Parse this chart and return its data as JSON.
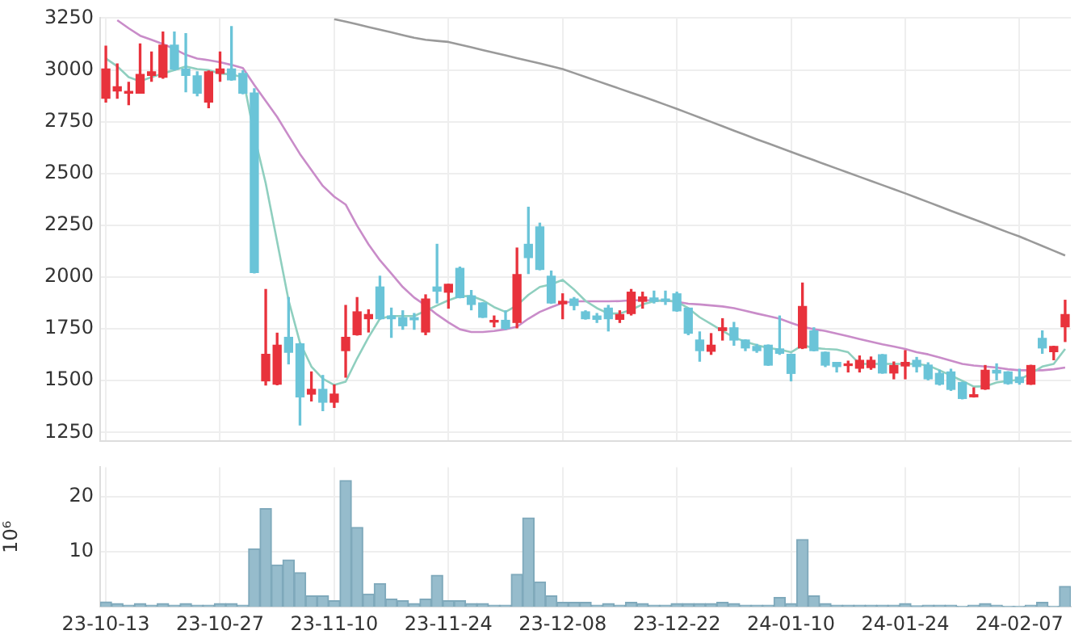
{
  "chart_data": [
    {
      "type": "candlestick",
      "tick_labels": "y",
      "grid": true,
      "ylim": [
        1210,
        3250
      ],
      "yticks": [
        1250,
        1500,
        1750,
        2000,
        2250,
        2500,
        2750,
        3000,
        3250
      ],
      "categories": [
        null,
        null,
        null,
        null,
        null,
        null,
        null,
        null,
        null,
        null,
        null,
        null,
        null,
        null,
        null,
        null,
        null,
        null,
        null,
        null,
        null,
        null,
        null,
        null,
        null,
        null,
        null,
        null,
        null,
        null,
        null,
        null,
        null,
        null,
        null,
        null,
        null,
        null,
        null,
        null,
        null,
        null,
        null,
        null,
        null,
        null,
        null,
        null,
        null,
        null,
        null,
        null,
        null,
        null,
        null,
        null,
        null,
        null,
        null,
        null,
        null,
        null,
        null,
        null,
        null,
        null,
        null,
        null,
        null,
        null,
        null,
        null,
        null,
        null,
        null,
        null,
        null,
        null,
        null,
        null,
        null,
        null,
        null,
        null,
        null
      ],
      "ohlc": [
        [
          2863,
          3114,
          2845,
          3004
        ],
        [
          2898,
          3029,
          2863,
          2919
        ],
        [
          2888,
          2940,
          2832,
          2896
        ],
        [
          2888,
          3125,
          2888,
          2978
        ],
        [
          2973,
          3086,
          2945,
          2991
        ],
        [
          2965,
          3183,
          2960,
          3119
        ],
        [
          3119,
          3183,
          3000,
          3004
        ],
        [
          3004,
          3175,
          2894,
          2973
        ],
        [
          2971,
          2991,
          2875,
          2888
        ],
        [
          2845,
          2995,
          2817,
          2991
        ],
        [
          2983,
          3086,
          2945,
          3004
        ],
        [
          3004,
          3209,
          2950,
          2952
        ],
        [
          2983,
          2996,
          2885,
          2888
        ],
        [
          2888,
          2909,
          2020,
          2022
        ],
        [
          1499,
          1940,
          1479,
          1627
        ],
        [
          1483,
          1729,
          1480,
          1671
        ],
        [
          1709,
          1901,
          1581,
          1637
        ],
        [
          1678,
          1680,
          1286,
          1422
        ],
        [
          1435,
          1542,
          1402,
          1458
        ],
        [
          1458,
          1525,
          1355,
          1396
        ],
        [
          1396,
          1479,
          1371,
          1435
        ],
        [
          1645,
          1863,
          1517,
          1709
        ],
        [
          1722,
          1901,
          1720,
          1832
        ],
        [
          1799,
          1842,
          1735,
          1819
        ],
        [
          1952,
          2004,
          1797,
          1799
        ],
        [
          1812,
          1850,
          1709,
          1799
        ],
        [
          1804,
          1837,
          1748,
          1765
        ],
        [
          1804,
          1824,
          1748,
          1794
        ],
        [
          1735,
          1914,
          1722,
          1894
        ],
        [
          1952,
          2158,
          1875,
          1932
        ],
        [
          1927,
          1965,
          1850,
          1965
        ],
        [
          2042,
          2048,
          1900,
          1901
        ],
        [
          1909,
          1935,
          1842,
          1868
        ],
        [
          1875,
          1876,
          1805,
          1806
        ],
        [
          1783,
          1812,
          1760,
          1789
        ],
        [
          1791,
          1837,
          1748,
          1752
        ],
        [
          1781,
          2140,
          1755,
          2012
        ],
        [
          2158,
          2337,
          2017,
          2094
        ],
        [
          2242,
          2260,
          2035,
          2037
        ],
        [
          2004,
          2029,
          1873,
          1875
        ],
        [
          1871,
          1919,
          1799,
          1883
        ],
        [
          1894,
          1901,
          1842,
          1863
        ],
        [
          1832,
          1837,
          1797,
          1799
        ],
        [
          1812,
          1824,
          1781,
          1796
        ],
        [
          1850,
          1863,
          1740,
          1799
        ],
        [
          1796,
          1837,
          1781,
          1819
        ],
        [
          1824,
          1940,
          1817,
          1927
        ],
        [
          1883,
          1927,
          1850,
          1904
        ],
        [
          1899,
          1932,
          1875,
          1883
        ],
        [
          1894,
          1932,
          1868,
          1883
        ],
        [
          1919,
          1927,
          1835,
          1837
        ],
        [
          1850,
          1850,
          1722,
          1729
        ],
        [
          1696,
          1735,
          1594,
          1645
        ],
        [
          1642,
          1727,
          1627,
          1671
        ],
        [
          1742,
          1799,
          1696,
          1755
        ],
        [
          1755,
          1781,
          1671,
          1696
        ],
        [
          1696,
          1697,
          1645,
          1658
        ],
        [
          1665,
          1675,
          1637,
          1645
        ],
        [
          1671,
          1672,
          1574,
          1575
        ],
        [
          1653,
          1812,
          1627,
          1632
        ],
        [
          1627,
          1628,
          1499,
          1535
        ],
        [
          1658,
          1971,
          1655,
          1858
        ],
        [
          1740,
          1755,
          1644,
          1645
        ],
        [
          1637,
          1638,
          1568,
          1575
        ],
        [
          1588,
          1588,
          1542,
          1568
        ],
        [
          1573,
          1594,
          1542,
          1578
        ],
        [
          1560,
          1619,
          1542,
          1598
        ],
        [
          1563,
          1614,
          1555,
          1598
        ],
        [
          1625,
          1626,
          1536,
          1537
        ],
        [
          1537,
          1590,
          1509,
          1573
        ],
        [
          1571,
          1645,
          1509,
          1588
        ],
        [
          1598,
          1612,
          1542,
          1568
        ],
        [
          1575,
          1586,
          1504,
          1509
        ],
        [
          1535,
          1550,
          1479,
          1483
        ],
        [
          1542,
          1555,
          1453,
          1458
        ],
        [
          1491,
          1492,
          1412,
          1414
        ],
        [
          1422,
          1465,
          1421,
          1432
        ],
        [
          1460,
          1573,
          1458,
          1550
        ],
        [
          1550,
          1581,
          1504,
          1537
        ],
        [
          1542,
          1543,
          1483,
          1486
        ],
        [
          1517,
          1555,
          1483,
          1491
        ],
        [
          1483,
          1574,
          1482,
          1573
        ],
        [
          1704,
          1740,
          1632,
          1658
        ],
        [
          1640,
          1666,
          1601,
          1665
        ],
        [
          1760,
          1888,
          1689,
          1819
        ]
      ],
      "colors": [
        "#e8323c",
        "#e8323c",
        "#e8323c",
        "#e8323c",
        "#e8323c",
        "#e8323c",
        "#6ac4d8",
        "#6ac4d8",
        "#6ac4d8",
        "#e8323c",
        "#e8323c",
        "#6ac4d8",
        "#6ac4d8",
        "#6ac4d8",
        "#e8323c",
        "#e8323c",
        "#6ac4d8",
        "#6ac4d8",
        "#e8323c",
        "#6ac4d8",
        "#e8323c",
        "#e8323c",
        "#e8323c",
        "#e8323c",
        "#6ac4d8",
        "#6ac4d8",
        "#6ac4d8",
        "#6ac4d8",
        "#e8323c",
        "#6ac4d8",
        "#e8323c",
        "#6ac4d8",
        "#6ac4d8",
        "#6ac4d8",
        "#e8323c",
        "#6ac4d8",
        "#e8323c",
        "#6ac4d8",
        "#6ac4d8",
        "#6ac4d8",
        "#e8323c",
        "#6ac4d8",
        "#6ac4d8",
        "#6ac4d8",
        "#6ac4d8",
        "#e8323c",
        "#e8323c",
        "#e8323c",
        "#6ac4d8",
        "#6ac4d8",
        "#6ac4d8",
        "#6ac4d8",
        "#6ac4d8",
        "#e8323c",
        "#e8323c",
        "#6ac4d8",
        "#6ac4d8",
        "#6ac4d8",
        "#6ac4d8",
        "#6ac4d8",
        "#6ac4d8",
        "#e8323c",
        "#6ac4d8",
        "#6ac4d8",
        "#6ac4d8",
        "#e8323c",
        "#e8323c",
        "#e8323c",
        "#6ac4d8",
        "#e8323c",
        "#e8323c",
        "#6ac4d8",
        "#6ac4d8",
        "#6ac4d8",
        "#6ac4d8",
        "#6ac4d8",
        "#e8323c",
        "#e8323c",
        "#6ac4d8",
        "#6ac4d8",
        "#6ac4d8",
        "#e8323c",
        "#6ac4d8",
        "#e8323c",
        "#e8323c"
      ],
      "series": [
        {
          "type": "line",
          "color": "#8fcfbf",
          "values": [
            3055,
            3017,
            2965,
            2945,
            2965,
            2983,
            2999,
            3017,
            3004,
            2999,
            2983,
            2978,
            2965,
            2683,
            2452,
            2171,
            1888,
            1683,
            1568,
            1509,
            1479,
            1495,
            1607,
            1709,
            1799,
            1812,
            1812,
            1812,
            1837,
            1863,
            1888,
            1907,
            1909,
            1888,
            1855,
            1832,
            1863,
            1914,
            1952,
            1965,
            1986,
            1940,
            1885,
            1850,
            1824,
            1824,
            1842,
            1868,
            1883,
            1888,
            1881,
            1850,
            1806,
            1773,
            1740,
            1709,
            1688,
            1671,
            1658,
            1650,
            1637,
            1671,
            1658,
            1653,
            1650,
            1637,
            1581,
            1581,
            1581,
            1581,
            1581,
            1581,
            1573,
            1550,
            1525,
            1499,
            1471,
            1473,
            1491,
            1499,
            1504,
            1535,
            1568,
            1581,
            1653
          ]
        },
        {
          "type": "line",
          "color": "#c98cc9",
          "values": [
            null,
            3240,
            3201,
            3165,
            3145,
            3125,
            3101,
            3073,
            3055,
            3047,
            3037,
            3024,
            3009,
            2927,
            2850,
            2773,
            2683,
            2594,
            2517,
            2440,
            2388,
            2350,
            2248,
            2158,
            2081,
            2017,
            1952,
            1901,
            1863,
            1819,
            1781,
            1748,
            1735,
            1735,
            1740,
            1748,
            1760,
            1799,
            1832,
            1855,
            1875,
            1883,
            1883,
            1883,
            1883,
            1884,
            1888,
            1888,
            1888,
            1886,
            1881,
            1871,
            1868,
            1863,
            1858,
            1850,
            1837,
            1824,
            1812,
            1799,
            1779,
            1760,
            1748,
            1740,
            1727,
            1714,
            1701,
            1688,
            1675,
            1665,
            1653,
            1637,
            1627,
            1612,
            1596,
            1581,
            1573,
            1568,
            1563,
            1555,
            1550,
            1550,
            1550,
            1555,
            1563
          ]
        },
        {
          "type": "line",
          "color": "#9a9a9a",
          "values": [
            null,
            null,
            null,
            null,
            null,
            null,
            null,
            null,
            null,
            null,
            null,
            null,
            null,
            null,
            null,
            null,
            null,
            null,
            null,
            null,
            3245,
            3233,
            3220,
            3207,
            3194,
            3181,
            3168,
            3155,
            3145,
            3140,
            3135,
            3122,
            3109,
            3096,
            3083,
            3070,
            3057,
            3044,
            3031,
            3018,
            3004,
            2985,
            2966,
            2947,
            2928,
            2909,
            2890,
            2871,
            2852,
            2832,
            2812,
            2791,
            2770,
            2749,
            2728,
            2707,
            2686,
            2665,
            2645,
            2625,
            2604,
            2584,
            2564,
            2544,
            2524,
            2504,
            2484,
            2464,
            2444,
            2424,
            2404,
            2383,
            2362,
            2341,
            2320,
            2299,
            2279,
            2258,
            2237,
            2216,
            2196,
            2173,
            2150,
            2127,
            2104
          ]
        }
      ]
    },
    {
      "type": "bar",
      "grid": true,
      "ylabel": "10⁶",
      "color": "#96bccc",
      "ylim": [
        0,
        25.3
      ],
      "yticks": [
        10,
        20
      ],
      "categories": [
        "23-10-13",
        null,
        null,
        null,
        null,
        null,
        null,
        null,
        null,
        null,
        "23-10-27",
        null,
        null,
        null,
        null,
        null,
        null,
        null,
        null,
        null,
        "23-11-10",
        null,
        null,
        null,
        null,
        null,
        null,
        null,
        null,
        null,
        "23-11-24",
        null,
        null,
        null,
        null,
        null,
        null,
        null,
        null,
        null,
        "23-12-08",
        null,
        null,
        null,
        null,
        null,
        null,
        null,
        null,
        null,
        "23-12-22",
        null,
        null,
        null,
        null,
        null,
        null,
        null,
        null,
        null,
        "24-01-10",
        null,
        null,
        null,
        null,
        null,
        null,
        null,
        null,
        null,
        "24-01-24",
        null,
        null,
        null,
        null,
        null,
        null,
        null,
        null,
        null,
        "24-02-07",
        null,
        null,
        null,
        null
      ],
      "values": [
        0.9,
        0.6,
        0.3,
        0.6,
        0.3,
        0.6,
        0.3,
        0.6,
        0.3,
        0.3,
        0.6,
        0.6,
        0.3,
        10.5,
        17.8,
        7.6,
        8.5,
        6.2,
        2.0,
        2.0,
        1.1,
        22.9,
        14.4,
        2.3,
        4.2,
        1.4,
        1.1,
        0.6,
        1.4,
        5.7,
        1.1,
        1.1,
        0.6,
        0.6,
        0.3,
        0.3,
        5.9,
        16.1,
        4.5,
        2.0,
        0.8,
        0.8,
        0.8,
        0.3,
        0.6,
        0.3,
        0.8,
        0.6,
        0.3,
        0.3,
        0.6,
        0.6,
        0.6,
        0.6,
        0.8,
        0.6,
        0.3,
        0.3,
        0.3,
        1.7,
        0.6,
        12.2,
        2.0,
        0.6,
        0.3,
        0.3,
        0.3,
        0.3,
        0.3,
        0.3,
        0.6,
        0.2,
        0.3,
        0.3,
        0.3,
        0.1,
        0.3,
        0.6,
        0.3,
        0.1,
        0.1,
        0.3,
        0.8,
        0.1,
        3.7
      ]
    }
  ]
}
